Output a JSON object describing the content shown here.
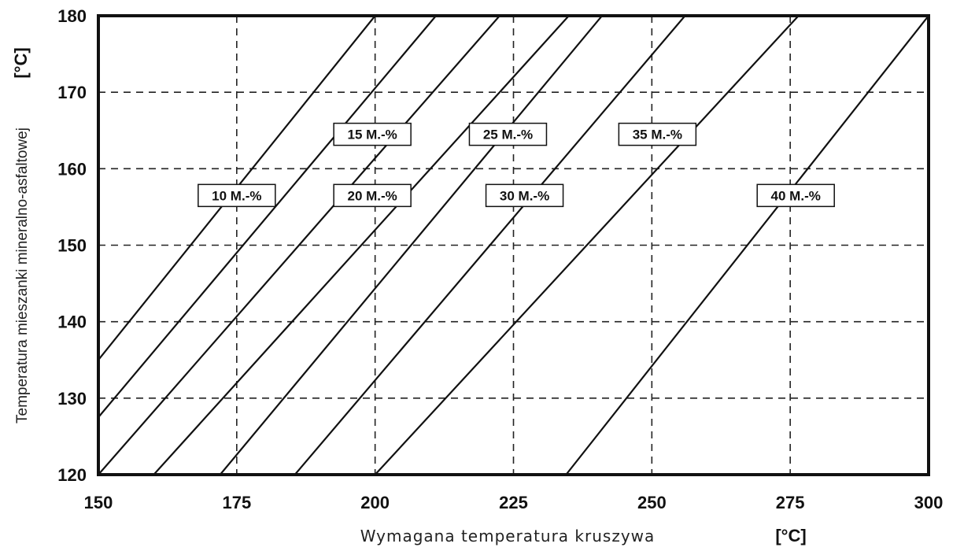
{
  "chart_data": {
    "type": "line",
    "title": "",
    "xlabel": "Wymagana temperatura kruszywa",
    "xunit": "[°C]",
    "ylabel": "Temperatura mieszanki mineralno-asfaltowej",
    "yunit": "[°C]",
    "xlim": [
      150,
      300
    ],
    "ylim": [
      120,
      180
    ],
    "xticks": [
      150,
      175,
      200,
      225,
      250,
      275,
      300
    ],
    "yticks": [
      120,
      130,
      140,
      150,
      160,
      170,
      180
    ],
    "x_tick_labels": [
      "150",
      "175",
      "200",
      "225",
      "250",
      "275",
      "300"
    ],
    "y_tick_labels": [
      "120",
      "130",
      "140",
      "150",
      "160",
      "170",
      "180"
    ],
    "grid": true,
    "legend": "inline labels",
    "series": [
      {
        "name": "10 M.-%",
        "label_at": [
          175,
          156.5
        ],
        "points": [
          [
            150,
            135
          ],
          [
            200,
            180
          ]
        ]
      },
      {
        "name": "15 M.-%",
        "label_at": [
          199.5,
          164.5
        ],
        "points": [
          [
            150,
            127.5
          ],
          [
            211,
            180
          ]
        ]
      },
      {
        "name": "20 M.-%",
        "label_at": [
          199.5,
          156.5
        ],
        "points": [
          [
            150,
            120
          ],
          [
            222.5,
            180
          ]
        ]
      },
      {
        "name": "25 M.-%",
        "label_at": [
          224,
          164.5
        ],
        "points": [
          [
            160,
            120
          ],
          [
            235,
            180
          ]
        ]
      },
      {
        "name": "30 M.-%",
        "label_at": [
          227,
          156.5
        ],
        "points": [
          [
            172,
            120
          ],
          [
            241,
            180
          ]
        ]
      },
      {
        "name": "35 M.-%",
        "label_at": [
          251,
          164.5
        ],
        "points": [
          [
            185.5,
            120
          ],
          [
            256,
            180
          ]
        ]
      },
      {
        "name": "40 M.-%",
        "label_at": [
          276,
          156.5
        ],
        "points": [
          [
            200,
            120
          ],
          [
            276.5,
            180
          ]
        ]
      },
      {
        "name": "",
        "label_at": null,
        "points": [
          [
            234.5,
            120
          ],
          [
            300,
            180
          ]
        ]
      }
    ]
  }
}
